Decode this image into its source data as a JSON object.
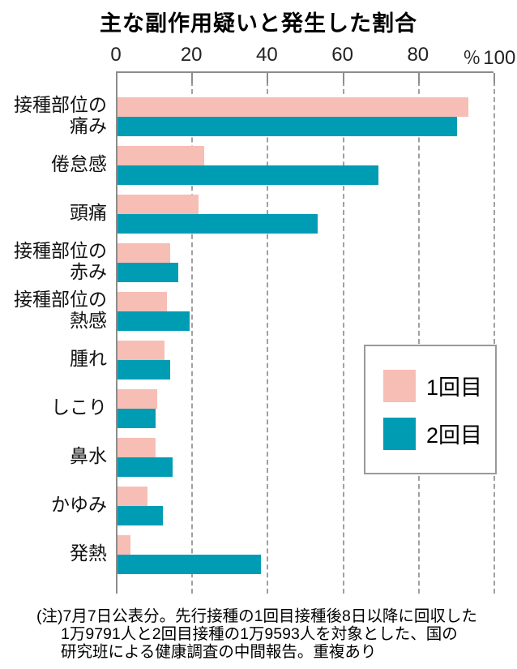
{
  "title": "主な副作用疑いと発生した割合",
  "chart_data": {
    "type": "bar",
    "orientation": "horizontal",
    "title": "主な副作用疑いと発生した割合",
    "categories": [
      "接種部位の痛み",
      "倦怠感",
      "頭痛",
      "接種部位の赤み",
      "接種部位の熱感",
      "腫れ",
      "しこり",
      "鼻水",
      "かゆみ",
      "発熱"
    ],
    "category_lines": [
      [
        "接種部位の",
        "痛み"
      ],
      [
        "倦怠感"
      ],
      [
        "頭痛"
      ],
      [
        "接種部位の",
        "赤み"
      ],
      [
        "接種部位の",
        "熱感"
      ],
      [
        "腫れ"
      ],
      [
        "しこり"
      ],
      [
        "鼻水"
      ],
      [
        "かゆみ"
      ],
      [
        "発熱"
      ]
    ],
    "series": [
      {
        "name": "1回目",
        "color": "#f7beb5",
        "values": [
          93,
          23,
          21.5,
          14,
          13,
          12.5,
          10.5,
          10,
          8,
          3.5
        ]
      },
      {
        "name": "2回目",
        "color": "#009cb4",
        "values": [
          90,
          69,
          53,
          16,
          19,
          14,
          10,
          14.5,
          12,
          38
        ]
      }
    ],
    "xlabel": "",
    "ylabel": "",
    "xlim": [
      0,
      100
    ],
    "x_ticks": [
      "0",
      "20",
      "40",
      "60",
      "80",
      "100"
    ],
    "x_unit": "％",
    "grid": "dashed-vertical",
    "legend_position": "middle-right"
  },
  "legend": {
    "items": [
      {
        "label": "1回目",
        "color": "#f7beb5"
      },
      {
        "label": "2回目",
        "color": "#009cb4"
      }
    ]
  },
  "note": {
    "lines": [
      "(注)7月7日公表分。先行接種の1回目接種後8日以降に回収した",
      "1万9791人と2回目接種の1万9593人を対象とした、国の",
      "研究班による健康調査の中間報告。重複あり"
    ]
  },
  "colors": {
    "dose1": "#f7beb5",
    "dose2": "#009cb4",
    "axis": "#8c8c8c",
    "grid": "#a0a0a0"
  }
}
